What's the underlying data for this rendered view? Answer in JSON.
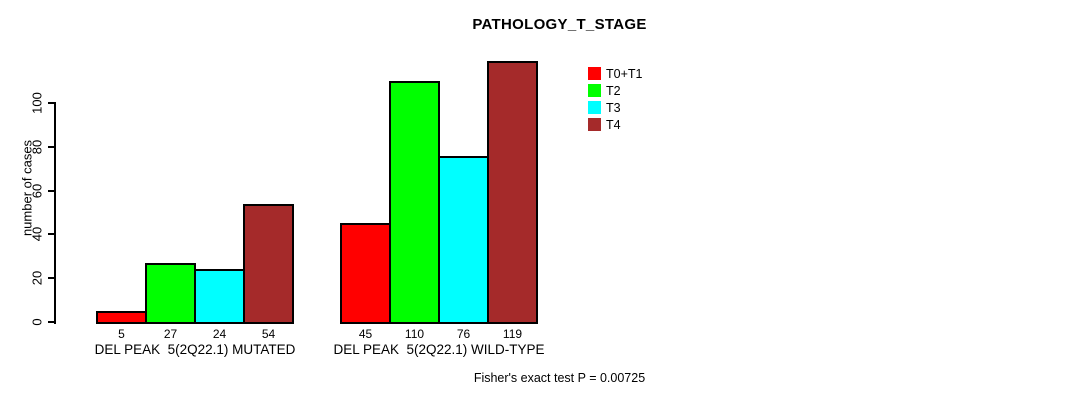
{
  "chart_data": {
    "type": "bar",
    "title": "PATHOLOGY_T_STAGE",
    "ylabel": "number of cases",
    "xlabel": "",
    "footnote": "Fisher's exact test P = 0.00725",
    "ylim": [
      0,
      120
    ],
    "yticks": [
      0,
      20,
      40,
      60,
      80,
      100
    ],
    "grid": false,
    "legend_position": "top-right",
    "bar_value_labels": true,
    "categories": [
      "DEL PEAK  5(2Q22.1) MUTATED",
      "DEL PEAK  5(2Q22.1) WILD-TYPE"
    ],
    "series": [
      {
        "name": "T0+T1",
        "color": "#FF0000",
        "values": [
          5,
          45
        ]
      },
      {
        "name": "T2",
        "color": "#00FF00",
        "values": [
          27,
          110
        ]
      },
      {
        "name": "T3",
        "color": "#00FFFF",
        "values": [
          24,
          76
        ]
      },
      {
        "name": "T4",
        "color": "#A52A2A",
        "values": [
          54,
          119
        ]
      }
    ]
  },
  "colors": {
    "background": "#FFFFFF",
    "axis": "#000000",
    "text": "#000000"
  }
}
